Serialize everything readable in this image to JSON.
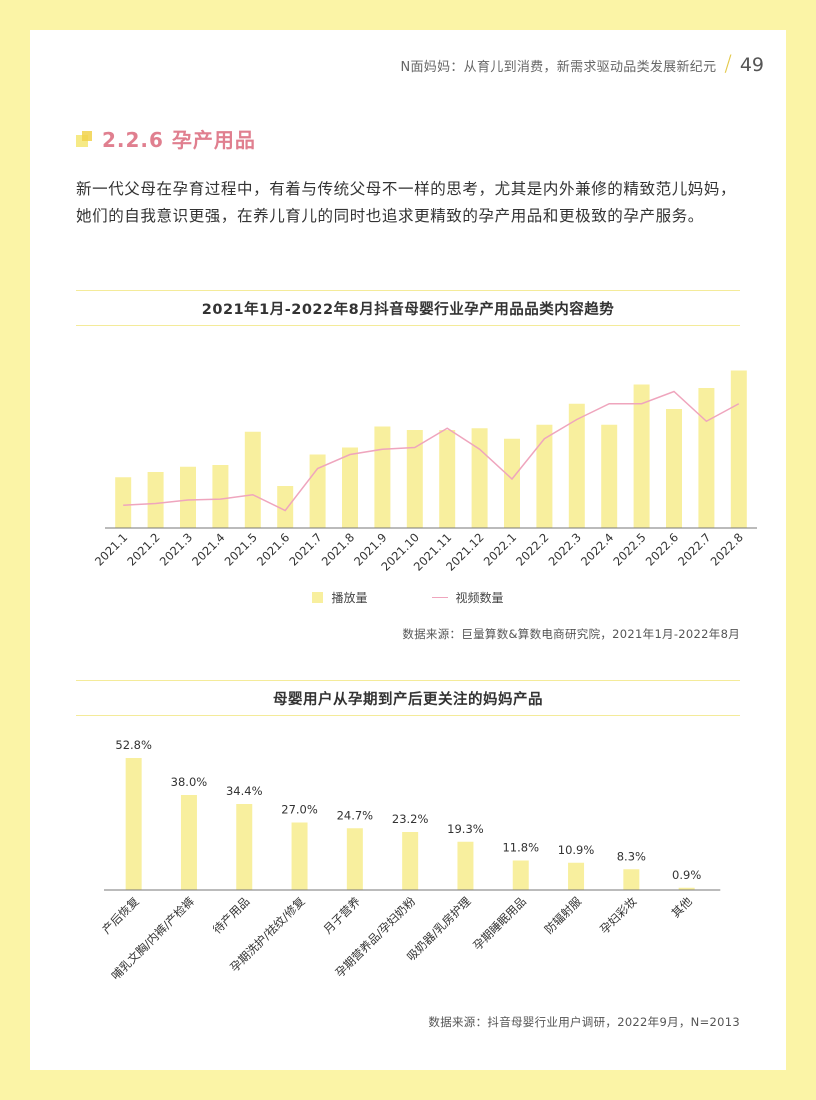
{
  "header": {
    "text": "N面妈妈：从育儿到消费，新需求驱动品类发展新纪元",
    "page_number": "49"
  },
  "section": {
    "title": "2.2.6 孕产用品"
  },
  "paragraph": "新一代父母在孕育过程中，有着与传统父母不一样的思考，尤其是内外兼修的精致范儿妈妈，她们的自我意识更强，在养儿育儿的同时也追求更精致的孕产用品和更极致的孕产服务。",
  "colors": {
    "bar": "#f8ef9e",
    "line": "#efa5bd",
    "accent_title": "#e07f8f",
    "page_border": "#fbf4a6"
  },
  "chart_data": [
    {
      "type": "bar",
      "title": "2021年1月-2022年8月抖音母婴行业孕产用品品类内容趋势",
      "categories": [
        "2021.1",
        "2021.2",
        "2021.3",
        "2021.4",
        "2021.5",
        "2021.6",
        "2021.7",
        "2021.8",
        "2021.9",
        "2021.10",
        "2021.11",
        "2021.12",
        "2022.1",
        "2022.2",
        "2022.3",
        "2022.4",
        "2022.5",
        "2022.6",
        "2022.7",
        "2022.8"
      ],
      "series": [
        {
          "name": "播放量",
          "type": "bar",
          "values": [
            29,
            32,
            35,
            36,
            55,
            24,
            42,
            46,
            58,
            56,
            56,
            57,
            51,
            59,
            71,
            59,
            82,
            68,
            80,
            90
          ]
        },
        {
          "name": "视频数量",
          "type": "line",
          "values": [
            13,
            14,
            16,
            16.5,
            19,
            10,
            34,
            42,
            45,
            46,
            57,
            45,
            28,
            51,
            62,
            71,
            71,
            78,
            61,
            71
          ]
        }
      ],
      "ylim": [
        0,
        100
      ],
      "legend": "bottom",
      "grid": false,
      "source": "数据来源：巨量算数&算数电商研究院，2021年1月-2022年8月"
    },
    {
      "type": "bar",
      "title": "母婴用户从孕期到产后更关注的妈妈产品",
      "categories": [
        "产后恢复",
        "哺乳文胸/内裤/产检裤",
        "待产用品",
        "孕期洗护/祛纹/修复",
        "月子营养",
        "孕期营养品/孕妇奶粉",
        "吸奶器/乳房护理",
        "孕期睡眠用品",
        "防辐射服",
        "孕妇彩妆",
        "其他"
      ],
      "values": [
        52.8,
        38.0,
        34.4,
        27.0,
        24.7,
        23.2,
        19.3,
        11.8,
        10.9,
        8.3,
        0.9
      ],
      "value_labels": [
        "52.8%",
        "38.0%",
        "34.4%",
        "27.0%",
        "24.7%",
        "23.2%",
        "19.3%",
        "11.8%",
        "10.9%",
        "8.3%",
        "0.9%"
      ],
      "ylim": [
        0,
        60
      ],
      "grid": false,
      "source": "数据来源：抖音母婴行业用户调研，2022年9月，N=2013"
    }
  ]
}
